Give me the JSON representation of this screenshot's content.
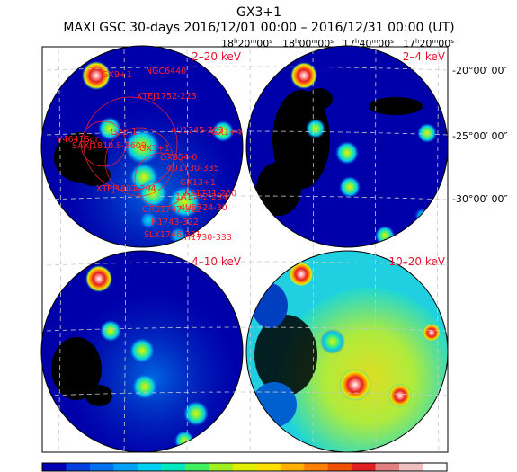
{
  "title": {
    "line1": "GX3+1",
    "line2": "MAXI GSC 30-days 2016/12/01 00:00 – 2016/12/31 00:00 (UT)"
  },
  "ra_ticks": [
    {
      "h": "18",
      "m": "20",
      "s": "00"
    },
    {
      "h": "18",
      "m": "00",
      "s": "00"
    },
    {
      "h": "17",
      "m": "40",
      "s": "00"
    },
    {
      "h": "17",
      "m": "20",
      "s": "00"
    }
  ],
  "dec_ticks": [
    "-20°00′ 00″",
    "-25°00′ 00″",
    "-30°00′ 00″"
  ],
  "panels": [
    {
      "band": "2–20 keV"
    },
    {
      "band": "2–4 keV"
    },
    {
      "band": "4–10 keV"
    },
    {
      "band": "10–20 keV"
    }
  ],
  "sources": [
    "GX9+1",
    "NGC6440",
    "XTEJ1752-223",
    "V4641Sgr",
    "SAXJ1810.8-2609",
    "GX5-1",
    "GX3+1",
    "4U1745-203",
    "GX354-0",
    "4U1730-335",
    "XTEJ1807-294",
    "1A1742-294",
    "GRS1747-312",
    "H1743-322",
    "SLX1746-331",
    "4U1724-30",
    "GX1+4",
    "GX13+1",
    "H1730-333",
    "KS1731-260"
  ],
  "colorbar": {
    "colors": [
      "#0000b0",
      "#0040e0",
      "#0070f0",
      "#00a0f8",
      "#00d0f0",
      "#00e8c0",
      "#40f060",
      "#a0f020",
      "#e0f000",
      "#ffe000",
      "#ffb000",
      "#ff8000",
      "#f05000",
      "#e02020",
      "#e08080",
      "#f0c0c0",
      "#ffffff"
    ]
  },
  "map_colors": {
    "background": "#0000aa",
    "outline": "#000000",
    "gap": "#ffffff",
    "grid": "#c8c8c8",
    "band_label": "#e8102a",
    "source_label": "#ff1f2e"
  }
}
